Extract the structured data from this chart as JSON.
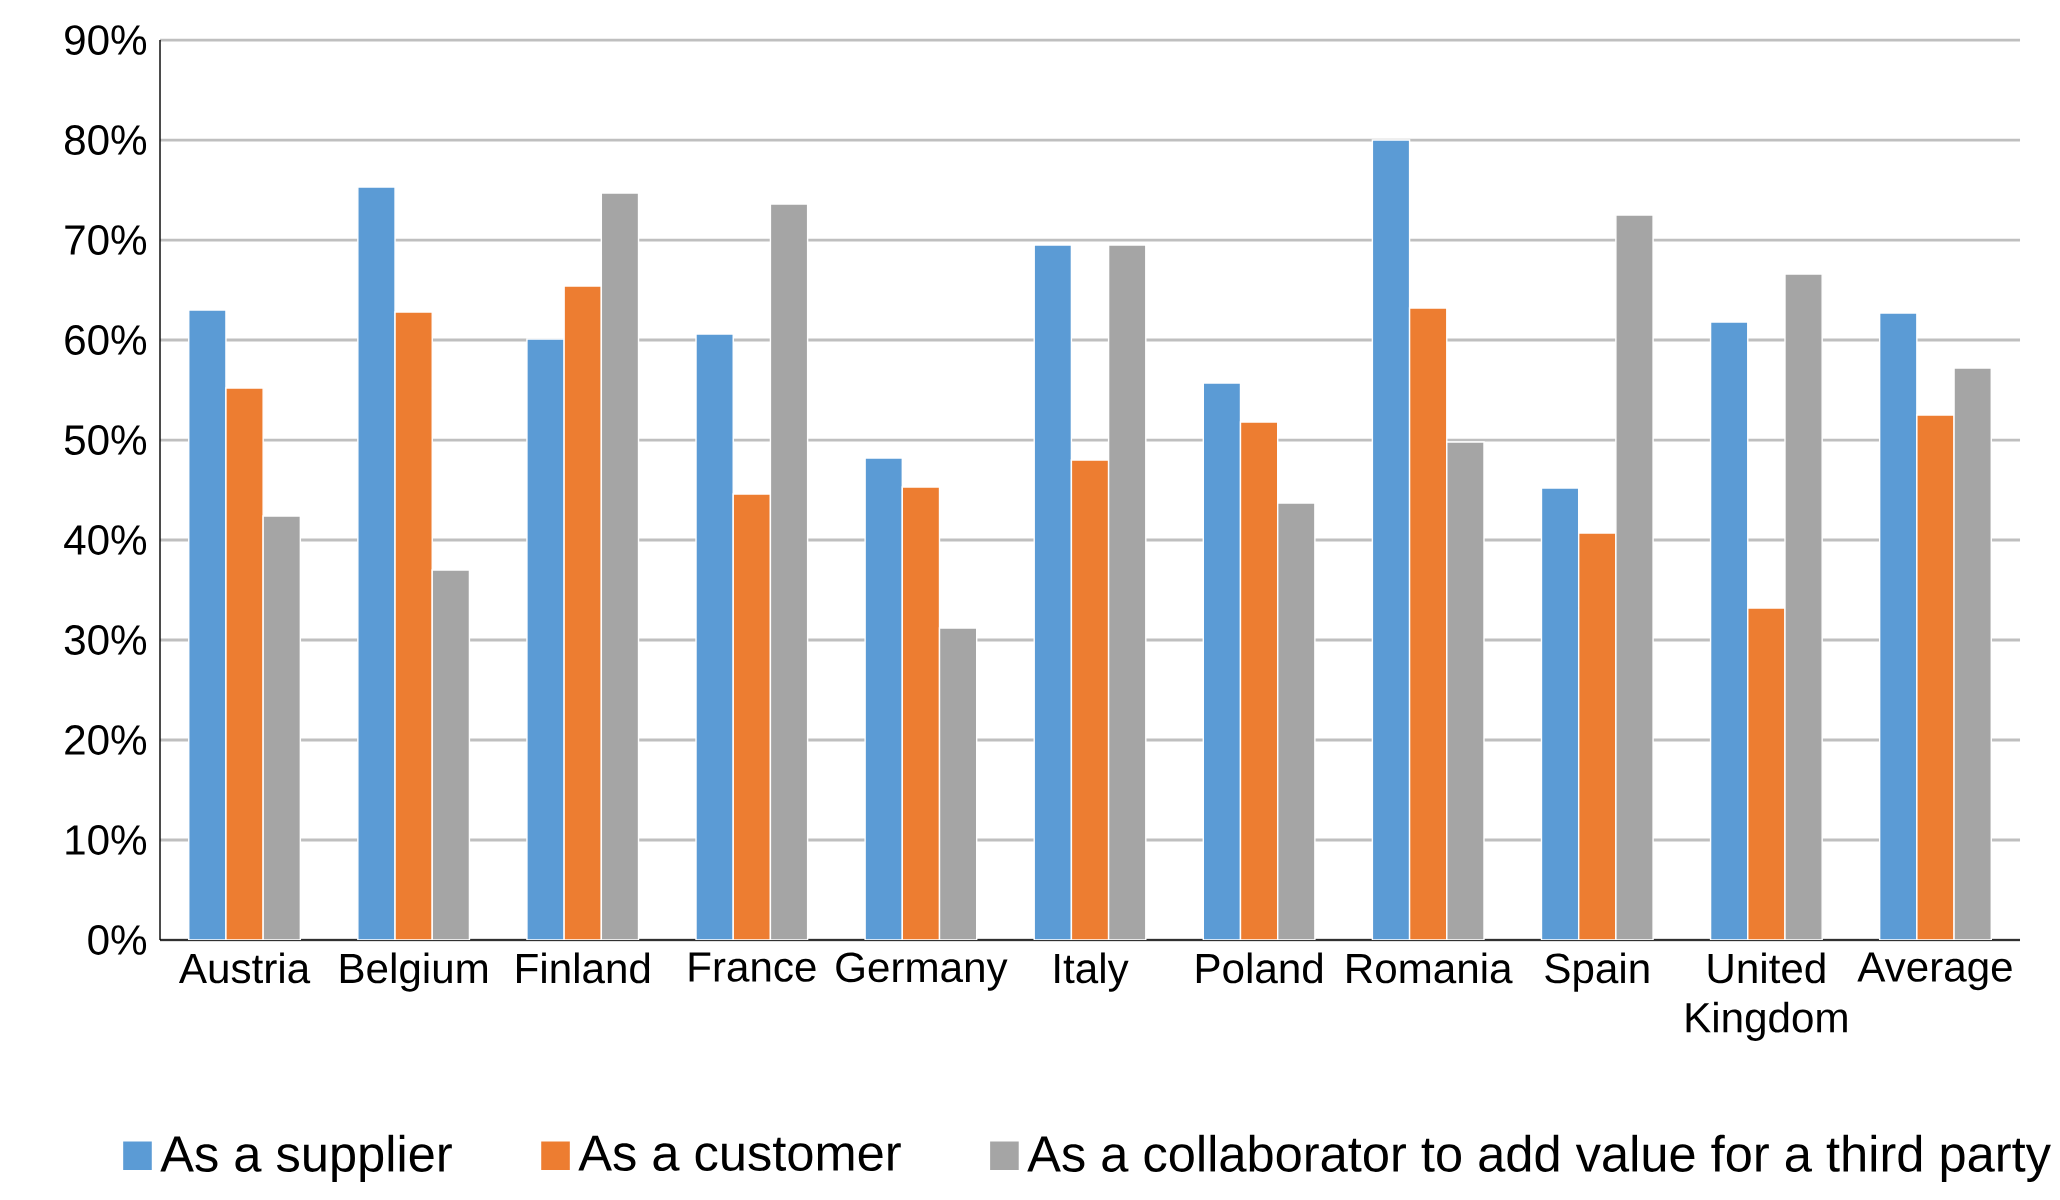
{
  "chart_data": {
    "type": "bar",
    "categories": [
      "Austria",
      "Belgium",
      "Finland",
      "France",
      "Germany",
      "Italy",
      "Poland",
      "Romania",
      "Spain",
      "United Kingdom",
      "Average"
    ],
    "series": [
      {
        "name": "As a supplier",
        "color": "#5b9bd5",
        "values": [
          63,
          75.3,
          60.1,
          60.6,
          48.2,
          69.5,
          55.7,
          80,
          45.2,
          61.8,
          62.7
        ]
      },
      {
        "name": "As a customer",
        "color": "#ed7d31",
        "values": [
          55.2,
          62.8,
          65.4,
          44.6,
          45.3,
          48,
          51.8,
          63.2,
          40.7,
          33.2,
          52.5
        ]
      },
      {
        "name": "As a collaborator to add value for a third party",
        "color": "#a5a5a5",
        "values": [
          42.4,
          37,
          74.7,
          73.6,
          31.2,
          69.5,
          43.7,
          49.8,
          72.5,
          66.6,
          57.2
        ]
      }
    ],
    "ylim": [
      0,
      90
    ],
    "yticks": [
      {
        "value": 0,
        "label": "0%"
      },
      {
        "value": 10,
        "label": "10%"
      },
      {
        "value": 20,
        "label": "20%"
      },
      {
        "value": 30,
        "label": "30%"
      },
      {
        "value": 40,
        "label": "40%"
      },
      {
        "value": 50,
        "label": "50%"
      },
      {
        "value": 60,
        "label": "60%"
      },
      {
        "value": 70,
        "label": "70%"
      },
      {
        "value": 80,
        "label": "80%"
      },
      {
        "value": 90,
        "label": "90%"
      }
    ],
    "grid": "y",
    "legend": "bottom"
  }
}
